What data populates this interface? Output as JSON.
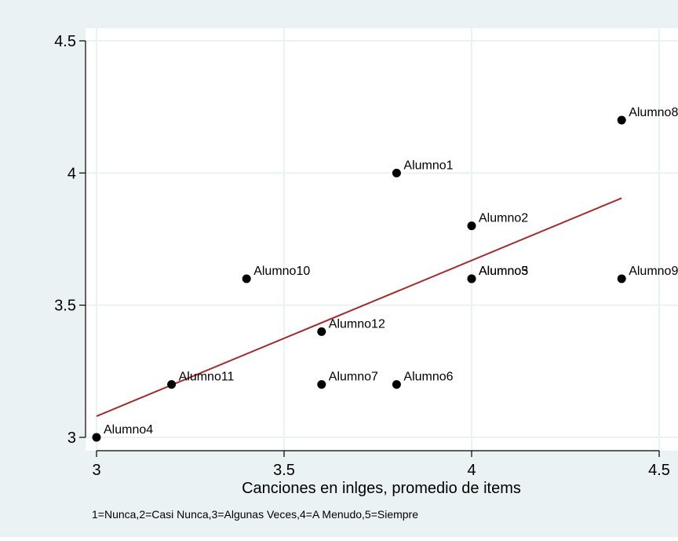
{
  "colors": {
    "outer_background": "#eaf2f3",
    "plot_background": "#ffffff",
    "grid": "#eaf2f3",
    "marker": "#000000",
    "fit_line": "#a52a2a",
    "text": "#000000"
  },
  "chart_data": {
    "type": "scatter",
    "title": "",
    "xlabel": "Canciones en inlges, promedio de items",
    "ylabel": "",
    "note": "1=Nunca,2=Casi Nunca,3=Algunas Veces,4=A Menudo,5=Siempre",
    "xlim": [
      3,
      4.5
    ],
    "ylim": [
      3,
      4.5
    ],
    "x_ticks": [
      3,
      3.5,
      4,
      4.5
    ],
    "y_ticks": [
      3,
      3.5,
      4,
      4.5
    ],
    "x_tick_labels": [
      "3",
      "3.5",
      "4",
      "4.5"
    ],
    "y_tick_labels": [
      "3",
      "3.5",
      "4",
      "4.5"
    ],
    "grid": true,
    "legend": "none",
    "points": [
      {
        "label": "Alumno1",
        "x": 3.8,
        "y": 4.0
      },
      {
        "label": "Alumno2",
        "x": 4.0,
        "y": 3.8
      },
      {
        "label": "Alumno3",
        "x": 4.0,
        "y": 3.6
      },
      {
        "label": "Alumno4",
        "x": 3.0,
        "y": 3.0
      },
      {
        "label": "Alumno5",
        "x": 4.0,
        "y": 3.6
      },
      {
        "label": "Alumno6",
        "x": 3.8,
        "y": 3.2
      },
      {
        "label": "Alumno7",
        "x": 3.6,
        "y": 3.2
      },
      {
        "label": "Alumno8",
        "x": 4.4,
        "y": 4.2
      },
      {
        "label": "Alumno9",
        "x": 4.4,
        "y": 3.6
      },
      {
        "label": "Alumno10",
        "x": 3.4,
        "y": 3.6
      },
      {
        "label": "Alumno11",
        "x": 3.2,
        "y": 3.2
      },
      {
        "label": "Alumno12",
        "x": 3.6,
        "y": 3.4
      }
    ],
    "fit_line": {
      "x": [
        3.0,
        4.4
      ],
      "y": [
        3.08,
        3.905
      ]
    }
  }
}
